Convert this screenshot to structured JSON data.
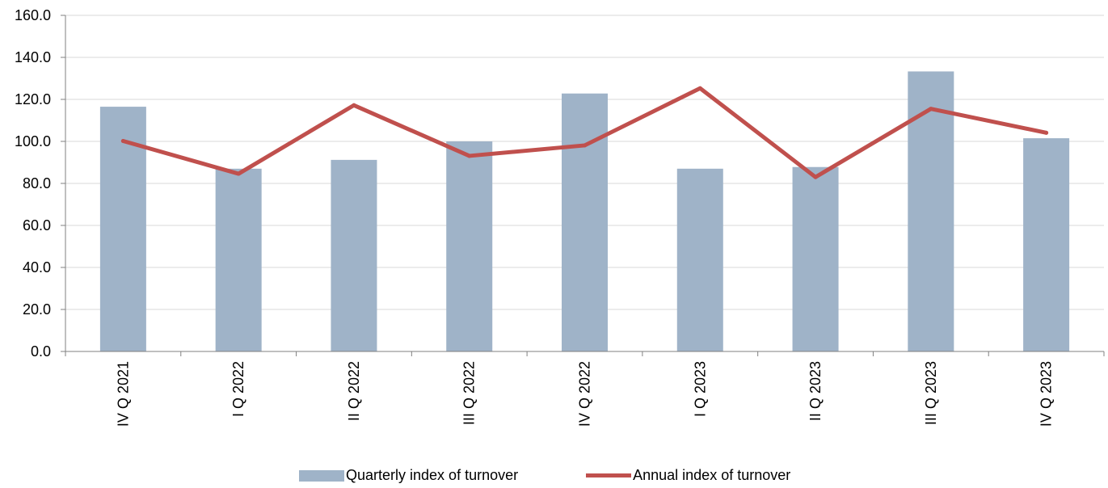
{
  "chart_data": {
    "type": "bar",
    "categories": [
      "IV Q 2021",
      "I Q 2022",
      "II Q 2022",
      "III Q 2022",
      "IV Q 2022",
      "I Q 2023",
      "II Q 2023",
      "III Q 2023",
      "IV Q 2023"
    ],
    "series": [
      {
        "name": "Quarterly index of turnover",
        "kind": "bar",
        "color": "#9fb3c8",
        "values": [
          116.5,
          87.0,
          91.2,
          100.0,
          122.8,
          87.0,
          87.8,
          133.3,
          101.5
        ]
      },
      {
        "name": "Annual index of turnover",
        "kind": "line",
        "color": "#c0504d",
        "values": [
          100.2,
          84.6,
          117.2,
          93.1,
          98.1,
          125.3,
          83.0,
          115.5,
          104.1
        ]
      }
    ],
    "ylim": [
      0,
      160
    ],
    "yticks": [
      "0.0",
      "20.0",
      "40.0",
      "60.0",
      "80.0",
      "100.0",
      "120.0",
      "140.0",
      "160.0"
    ],
    "grid": true,
    "legend_position": "bottom"
  }
}
